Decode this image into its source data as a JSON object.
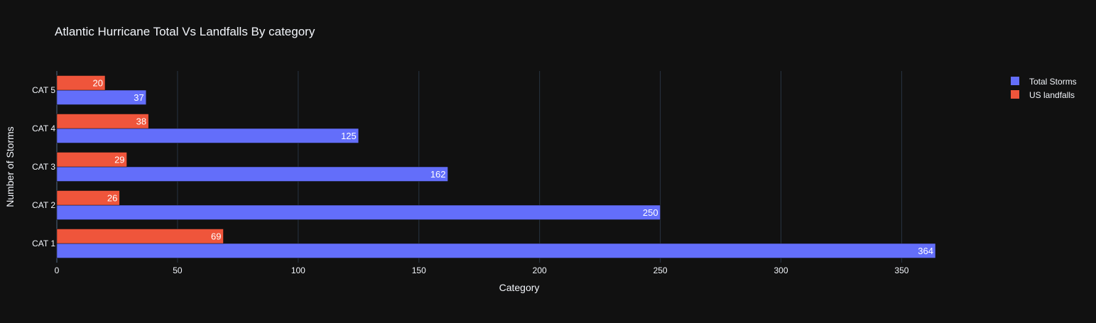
{
  "chart_data": {
    "type": "bar",
    "orientation": "horizontal",
    "barmode": "group",
    "title": "Atlantic Hurricane Total Vs Landfalls By category",
    "xlabel": "Category",
    "ylabel": "Number of Storms",
    "categories": [
      "CAT 1",
      "CAT 2",
      "CAT 3",
      "CAT 4",
      "CAT 5"
    ],
    "series": [
      {
        "name": "Total Storms",
        "color": "#636efa",
        "values": [
          364,
          250,
          162,
          125,
          37
        ]
      },
      {
        "name": "US landfalls",
        "color": "#ef553b",
        "values": [
          69,
          26,
          29,
          38,
          20
        ]
      }
    ],
    "xlim": [
      0,
      364
    ],
    "xticks": [
      0,
      50,
      100,
      150,
      200,
      250,
      300,
      350
    ],
    "grid": true,
    "legend_position": "top-right",
    "colors": {
      "background": "#111111",
      "grid": "#283442",
      "text": "#f2f5fa"
    }
  }
}
